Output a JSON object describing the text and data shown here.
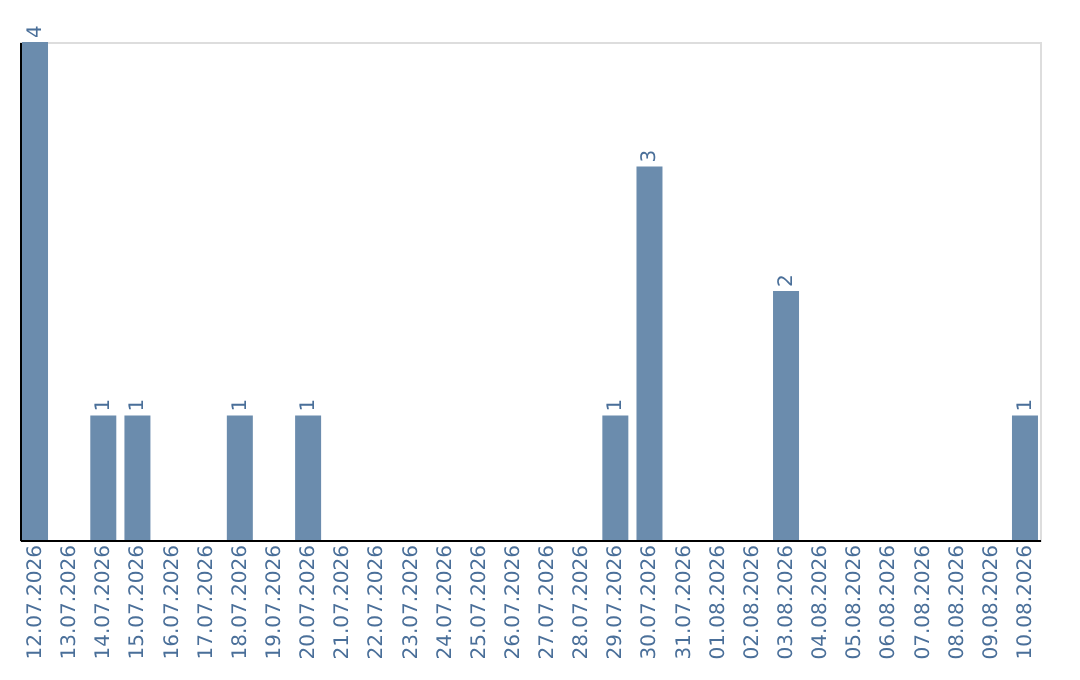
{
  "chart_data": {
    "type": "bar",
    "categories": [
      "12.07.2026",
      "13.07.2026",
      "14.07.2026",
      "15.07.2026",
      "16.07.2026",
      "17.07.2026",
      "18.07.2026",
      "19.07.2026",
      "20.07.2026",
      "21.07.2026",
      "22.07.2026",
      "23.07.2026",
      "24.07.2026",
      "25.07.2026",
      "26.07.2026",
      "27.07.2026",
      "28.07.2026",
      "29.07.2026",
      "30.07.2026",
      "31.07.2026",
      "01.08.2026",
      "02.08.2026",
      "03.08.2026",
      "04.08.2026",
      "05.08.2026",
      "06.08.2026",
      "07.08.2026",
      "08.08.2026",
      "09.08.2026",
      "10.08.2026"
    ],
    "values": [
      4,
      0,
      1,
      1,
      0,
      0,
      1,
      0,
      1,
      0,
      0,
      0,
      0,
      0,
      0,
      0,
      0,
      1,
      3,
      0,
      0,
      0,
      2,
      0,
      0,
      0,
      0,
      0,
      0,
      1
    ],
    "value_labels": [
      "4",
      null,
      "1",
      "1",
      null,
      null,
      "1",
      null,
      "1",
      null,
      null,
      null,
      null,
      null,
      null,
      null,
      null,
      "1",
      "3",
      null,
      null,
      null,
      "2",
      null,
      null,
      null,
      null,
      null,
      null,
      "1"
    ],
    "color": "#6b8cad",
    "ylim": [
      0,
      4
    ],
    "tick_labels": "x",
    "grid": false
  }
}
